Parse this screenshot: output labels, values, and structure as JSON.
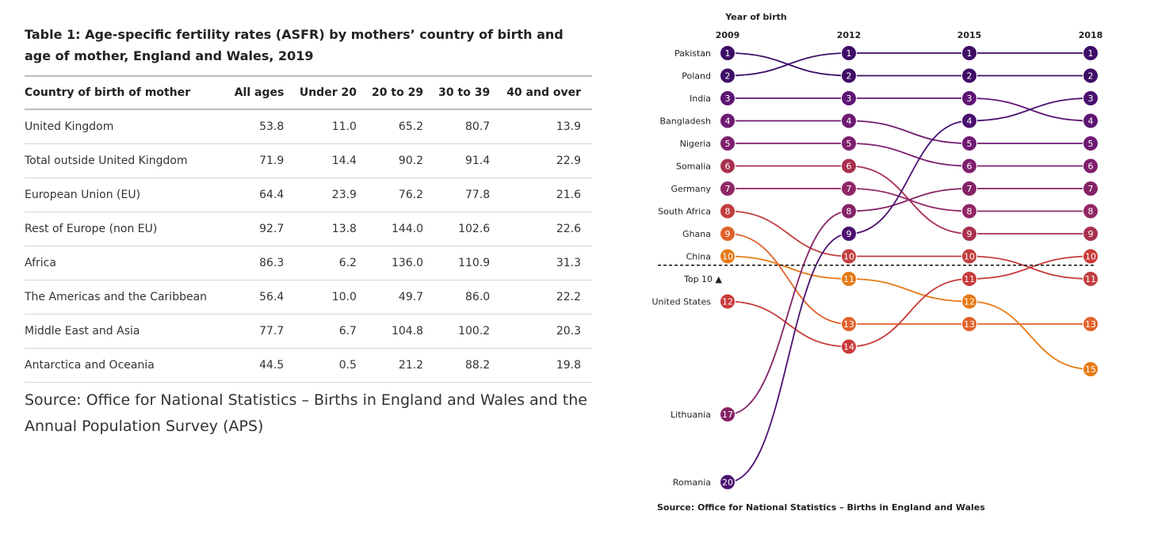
{
  "table": {
    "title": "Table 1: Age-specific fertility rates (ASFR) by mothers’ country of birth and age of mother, England and Wales, 2019",
    "headers": [
      "Country of birth of mother",
      "All ages",
      "Under 20",
      "20 to 29",
      "30 to 39",
      "40 and over"
    ],
    "rows": [
      [
        "United Kingdom",
        "53.8",
        "11.0",
        "65.2",
        "80.7",
        "13.9"
      ],
      [
        "Total outside United Kingdom",
        "71.9",
        "14.4",
        "90.2",
        "91.4",
        "22.9"
      ],
      [
        "European Union (EU)",
        "64.4",
        "23.9",
        "76.2",
        "77.8",
        "21.6"
      ],
      [
        "Rest of Europe (non EU)",
        "92.7",
        "13.8",
        "144.0",
        "102.6",
        "22.6"
      ],
      [
        "Africa",
        "86.3",
        "6.2",
        "136.0",
        "110.9",
        "31.3"
      ],
      [
        "The Americas and the Caribbean",
        "56.4",
        "10.0",
        "49.7",
        "86.0",
        "22.2"
      ],
      [
        "Middle East and Asia",
        "77.7",
        "6.7",
        "104.8",
        "100.2",
        "20.3"
      ],
      [
        "Antarctica and Oceania",
        "44.5",
        "0.5",
        "21.2",
        "88.2",
        "19.8"
      ]
    ],
    "source": "Source: Office for National Statistics – Births in England and Wales and the Annual Population Survey (APS)"
  },
  "chart_data": {
    "type": "line",
    "subtype": "bump",
    "xlabel": "Year of birth",
    "x": [
      "2009",
      "2012",
      "2015",
      "2018"
    ],
    "y_reversed": true,
    "threshold": {
      "rank": 10.5,
      "label": "Top 10 ▲",
      "style": "dashed"
    },
    "series": [
      {
        "name": "Pakistan",
        "ranks": [
          1,
          2,
          2,
          2
        ],
        "color": "#3d0c66"
      },
      {
        "name": "Poland",
        "ranks": [
          2,
          1,
          1,
          1
        ],
        "color": "#3d0c66"
      },
      {
        "name": "India",
        "ranks": [
          3,
          3,
          3,
          4
        ],
        "color": "#5e1574"
      },
      {
        "name": "Bangladesh",
        "ranks": [
          4,
          4,
          5,
          5
        ],
        "color": "#6e1a73"
      },
      {
        "name": "Nigeria",
        "ranks": [
          5,
          5,
          6,
          6
        ],
        "color": "#7e1f6e"
      },
      {
        "name": "Somalia",
        "ranks": [
          6,
          6,
          9,
          9
        ],
        "color": "#a8304e"
      },
      {
        "name": "Germany",
        "ranks": [
          7,
          7,
          8,
          8
        ],
        "color": "#912766"
      },
      {
        "name": "South Africa",
        "ranks": [
          8,
          10,
          10,
          11
        ],
        "color": "#c23d3e"
      },
      {
        "name": "Ghana",
        "ranks": [
          9,
          13,
          13,
          13
        ],
        "color": "#e0622a"
      },
      {
        "name": "China",
        "ranks": [
          10,
          11,
          12,
          15
        ],
        "color": "#e67a16"
      },
      {
        "name": "United States",
        "ranks": [
          12,
          14,
          11,
          10
        ],
        "color": "#c93a3a"
      },
      {
        "name": "Lithuania",
        "ranks": [
          17,
          8,
          7,
          7
        ],
        "color": "#852266"
      },
      {
        "name": "Romania",
        "ranks": [
          20,
          9,
          4,
          3
        ],
        "color": "#4a1070"
      }
    ],
    "source": "Source: Office for National Statistics – Births in England and Wales"
  }
}
